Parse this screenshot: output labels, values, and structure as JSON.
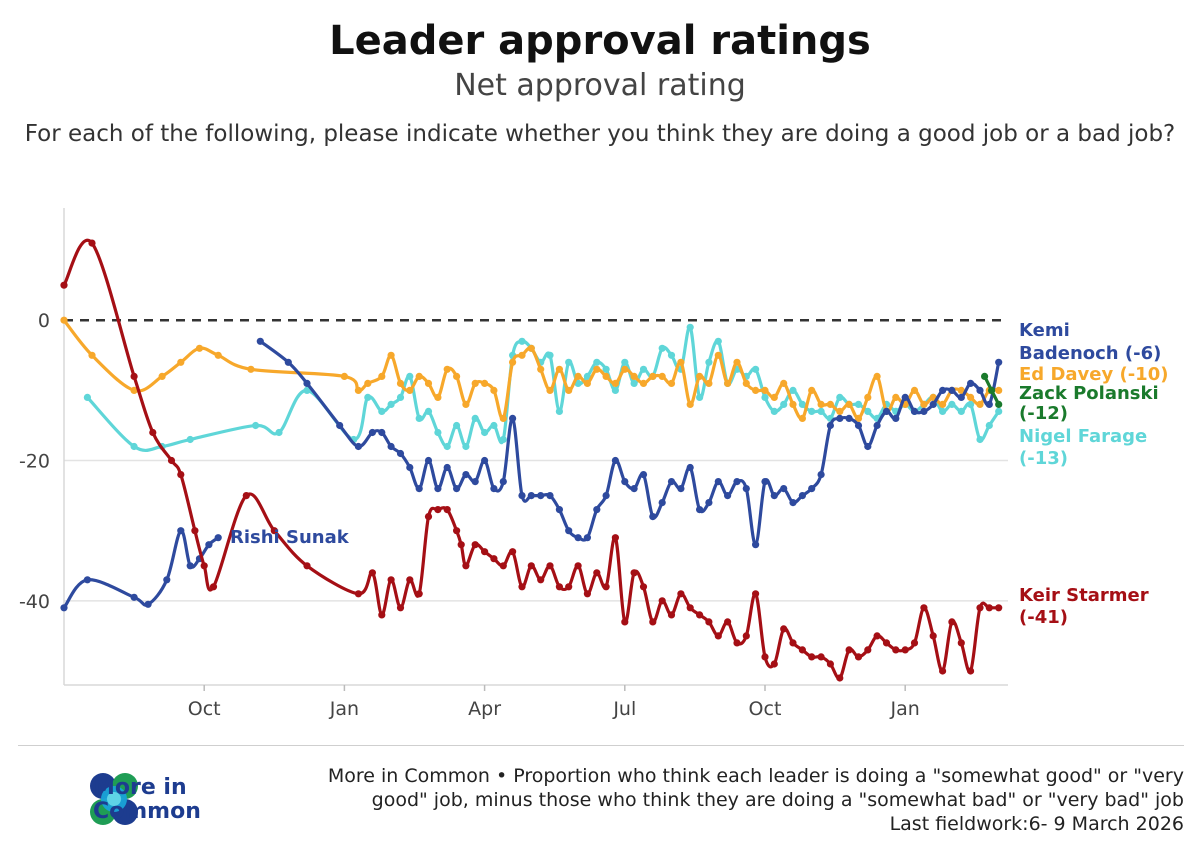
{
  "header": {
    "title": "Leader approval ratings",
    "subtitle": "Net approval rating",
    "question": "For each of the following, please indicate whether you think they are doing a good job or a bad job?"
  },
  "footer": {
    "line1": "More in Common • Proportion who think each leader is doing a \"somewhat good\" or \"very",
    "line2": "good\" job, minus those who think they are doing a \"somewhat bad\" or \"very bad\" job",
    "line3": "Last fieldwork:6- 9 March 2026"
  },
  "brand": {
    "name_line1": "More in",
    "name_line2": "Common",
    "colors": [
      "#1d3c8f",
      "#19a3d8",
      "#1f9d55",
      "#5fd3e6"
    ]
  },
  "chart_data": {
    "type": "line",
    "title": "Leader approval ratings",
    "subtitle": "Net approval rating",
    "xlabel": "",
    "ylabel": "",
    "xlim": [
      0,
      20.2
    ],
    "ylim": [
      -52,
      16
    ],
    "x_ticks": [
      {
        "label": "Oct",
        "x": 3.0
      },
      {
        "label": "Jan",
        "x": 6.0
      },
      {
        "label": "Apr",
        "x": 9.0
      },
      {
        "label": "Jul",
        "x": 12.0
      },
      {
        "label": "Oct",
        "x": 15.0
      },
      {
        "label": "Jan",
        "x": 18.0
      }
    ],
    "y_ticks": [
      0,
      -20,
      -40
    ],
    "zero_line": "dashed",
    "series": [
      {
        "name": "Keir Starmer",
        "label": "Keir Starmer",
        "value_label": "(-41)",
        "color": "#a50f15",
        "x": [
          0,
          0.6,
          1.5,
          1.9,
          2.3,
          2.5,
          2.8,
          3.0,
          3.2,
          3.9,
          4.5,
          5.2,
          6.3,
          6.6,
          6.8,
          7.0,
          7.2,
          7.4,
          7.6,
          7.8,
          8.0,
          8.2,
          8.4,
          8.5,
          8.6,
          8.8,
          9.0,
          9.2,
          9.4,
          9.6,
          9.8,
          10.0,
          10.2,
          10.4,
          10.6,
          10.8,
          11.0,
          11.2,
          11.4,
          11.6,
          11.8,
          12.0,
          12.2,
          12.4,
          12.6,
          12.8,
          13.0,
          13.2,
          13.4,
          13.6,
          13.8,
          14.0,
          14.2,
          14.4,
          14.6,
          14.8,
          15.0,
          15.2,
          15.4,
          15.6,
          15.8,
          16.0,
          16.2,
          16.4,
          16.6,
          16.8,
          17.0,
          17.2,
          17.4,
          17.6,
          17.8,
          18.0,
          18.2,
          18.4,
          18.6,
          18.8,
          19.0,
          19.2,
          19.4,
          19.6,
          19.8,
          20.0
        ],
        "values": [
          5,
          11,
          -8,
          -16,
          -20,
          -22,
          -30,
          -35,
          -38,
          -25,
          -30,
          -35,
          -39,
          -36,
          -42,
          -37,
          -41,
          -37,
          -39,
          -28,
          -27,
          -27,
          -30,
          -32,
          -35,
          -32,
          -33,
          -34,
          -35,
          -33,
          -38,
          -35,
          -37,
          -35,
          -38,
          -38,
          -35,
          -39,
          -36,
          -38,
          -31,
          -43,
          -36,
          -38,
          -43,
          -40,
          -42,
          -39,
          -41,
          -42,
          -43,
          -45,
          -43,
          -46,
          -45,
          -39,
          -48,
          -49,
          -44,
          -46,
          -47,
          -48,
          -48,
          -49,
          -51,
          -47,
          -48,
          -47,
          -45,
          -46,
          -47,
          -47,
          -46,
          -41,
          -45,
          -50,
          -43,
          -46,
          -50,
          -41,
          -41,
          -41
        ]
      },
      {
        "name": "Rishi Sunak",
        "label": "Rishi Sunak",
        "value_label": "",
        "color": "#2e4a9e",
        "x": [
          0,
          0.5,
          1.5,
          1.8,
          2.2,
          2.5,
          2.7,
          2.9,
          3.1,
          3.3
        ],
        "values": [
          -41,
          -37,
          -39.5,
          -40.5,
          -37,
          -30,
          -35,
          -34,
          -32,
          -31
        ]
      },
      {
        "name": "Kemi Badenoch",
        "label": "Kemi",
        "label2": "Badenoch",
        "value_label": "(-6)",
        "color": "#2e4a9e",
        "x": [
          4.2,
          4.8,
          5.2,
          5.9,
          6.3,
          6.6,
          6.8,
          7.0,
          7.2,
          7.4,
          7.6,
          7.8,
          8.0,
          8.2,
          8.4,
          8.6,
          8.8,
          9.0,
          9.2,
          9.4,
          9.6,
          9.8,
          10.0,
          10.2,
          10.4,
          10.6,
          10.8,
          11.0,
          11.2,
          11.4,
          11.6,
          11.8,
          12.0,
          12.2,
          12.4,
          12.6,
          12.8,
          13.0,
          13.2,
          13.4,
          13.6,
          13.8,
          14.0,
          14.2,
          14.4,
          14.6,
          14.8,
          15.0,
          15.2,
          15.4,
          15.6,
          15.8,
          16.0,
          16.2,
          16.4,
          16.6,
          16.8,
          17.0,
          17.2,
          17.4,
          17.6,
          17.8,
          18.0,
          18.2,
          18.4,
          18.6,
          18.8,
          19.0,
          19.2,
          19.4,
          19.6,
          19.8,
          20.0
        ],
        "values": [
          -3,
          -6,
          -9,
          -15,
          -18,
          -16,
          -16,
          -18,
          -19,
          -21,
          -24,
          -20,
          -24,
          -21,
          -24,
          -22,
          -23,
          -20,
          -24,
          -23,
          -14,
          -25,
          -25,
          -25,
          -25,
          -27,
          -30,
          -31,
          -31,
          -27,
          -25,
          -20,
          -23,
          -24,
          -22,
          -28,
          -26,
          -23,
          -24,
          -21,
          -27,
          -26,
          -23,
          -25,
          -23,
          -24,
          -32,
          -23,
          -25,
          -24,
          -26,
          -25,
          -24,
          -22,
          -15,
          -14,
          -14,
          -15,
          -18,
          -15,
          -13,
          -14,
          -11,
          -13,
          -13,
          -12,
          -10,
          -10,
          -11,
          -9,
          -10,
          -12,
          -6
        ]
      },
      {
        "name": "Ed Davey",
        "label": "Ed Davey",
        "value_label": "(-10)",
        "color": "#f7a82b",
        "x": [
          0,
          0.6,
          1.5,
          2.1,
          2.5,
          2.9,
          3.3,
          4.0,
          6.0,
          6.3,
          6.5,
          6.8,
          7.0,
          7.2,
          7.4,
          7.6,
          7.8,
          8.0,
          8.2,
          8.4,
          8.6,
          8.8,
          9.0,
          9.2,
          9.4,
          9.6,
          9.8,
          10.0,
          10.2,
          10.4,
          10.6,
          10.8,
          11.0,
          11.2,
          11.4,
          11.6,
          11.8,
          12.0,
          12.2,
          12.4,
          12.6,
          12.8,
          13.0,
          13.2,
          13.4,
          13.6,
          13.8,
          14.0,
          14.2,
          14.4,
          14.6,
          14.8,
          15.0,
          15.2,
          15.4,
          15.6,
          15.8,
          16.0,
          16.2,
          16.4,
          16.6,
          16.8,
          17.0,
          17.2,
          17.4,
          17.6,
          17.8,
          18.0,
          18.2,
          18.4,
          18.6,
          18.8,
          19.0,
          19.2,
          19.4,
          19.6,
          19.8,
          20.0
        ],
        "values": [
          0,
          -5,
          -10,
          -8,
          -6,
          -4,
          -5,
          -7,
          -8,
          -10,
          -9,
          -8,
          -5,
          -9,
          -10,
          -8,
          -9,
          -11,
          -7,
          -8,
          -12,
          -9,
          -9,
          -10,
          -14,
          -6,
          -5,
          -4,
          -7,
          -10,
          -7,
          -10,
          -8,
          -9,
          -7,
          -8,
          -9,
          -7,
          -8,
          -9,
          -8,
          -8,
          -9,
          -6,
          -12,
          -8,
          -9,
          -5,
          -9,
          -6,
          -9,
          -10,
          -10,
          -11,
          -9,
          -12,
          -14,
          -10,
          -12,
          -12,
          -13,
          -12,
          -14,
          -11,
          -8,
          -13,
          -11,
          -12,
          -10,
          -12,
          -11,
          -12,
          -10,
          -10,
          -11,
          -12,
          -10,
          -10
        ]
      },
      {
        "name": "Zack Polanski",
        "label": "Zack Polanski",
        "value_label": "(-12)",
        "color": "#1a7a2c",
        "x": [
          19.7,
          19.85,
          20.0
        ],
        "values": [
          -8,
          -10,
          -12
        ]
      },
      {
        "name": "Nigel Farage",
        "label": "Nigel Farage",
        "value_label": "(-13)",
        "color": "#5fd6d8",
        "x": [
          0.5,
          1.5,
          2.1,
          2.7,
          4.1,
          4.6,
          5.2,
          6.2,
          6.5,
          6.8,
          7.0,
          7.2,
          7.4,
          7.6,
          7.8,
          8.0,
          8.2,
          8.4,
          8.6,
          8.8,
          9.0,
          9.2,
          9.4,
          9.6,
          9.8,
          10.0,
          10.2,
          10.4,
          10.6,
          10.8,
          11.0,
          11.2,
          11.4,
          11.6,
          11.8,
          12.0,
          12.2,
          12.4,
          12.6,
          12.8,
          13.0,
          13.2,
          13.4,
          13.6,
          13.8,
          14.0,
          14.2,
          14.4,
          14.6,
          14.8,
          15.0,
          15.2,
          15.4,
          15.6,
          15.8,
          16.0,
          16.2,
          16.4,
          16.6,
          16.8,
          17.0,
          17.2,
          17.4,
          17.6,
          17.8,
          18.0,
          18.2,
          18.4,
          18.6,
          18.8,
          19.0,
          19.2,
          19.4,
          19.6,
          19.8,
          20.0
        ],
        "values": [
          -11,
          -18,
          -18,
          -17,
          -15,
          -16,
          -10,
          -17,
          -11,
          -13,
          -12,
          -11,
          -8,
          -14,
          -13,
          -16,
          -18,
          -15,
          -18,
          -14,
          -16,
          -15,
          -17,
          -5,
          -3,
          -4,
          -6,
          -5,
          -13,
          -6,
          -9,
          -8,
          -6,
          -7,
          -10,
          -6,
          -9,
          -7,
          -8,
          -4,
          -5,
          -7,
          -1,
          -11,
          -6,
          -3,
          -9,
          -7,
          -8,
          -7,
          -11,
          -13,
          -12,
          -10,
          -12,
          -13,
          -13,
          -14,
          -11,
          -12,
          -12,
          -13,
          -14,
          -12,
          -13,
          -12,
          -13,
          -12,
          -11,
          -13,
          -12,
          -13,
          -12,
          -17,
          -15,
          -13
        ]
      }
    ],
    "legend": "direct labels at right end of lines",
    "annotations": [
      {
        "text": "Rishi Sunak",
        "series": "Rishi Sunak"
      }
    ]
  }
}
